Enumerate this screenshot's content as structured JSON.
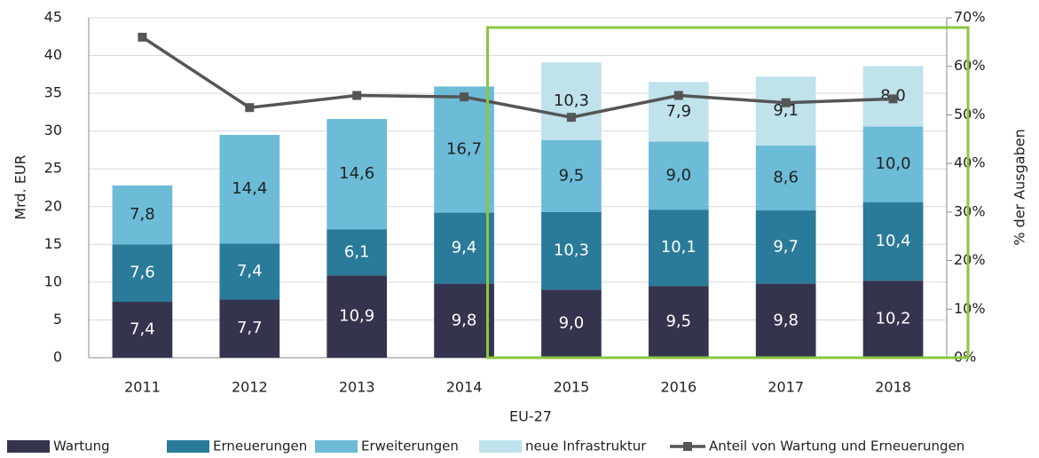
{
  "chart_data": {
    "type": "bar",
    "stacked": true,
    "categories": [
      "2011",
      "2012",
      "2013",
      "2014",
      "2015",
      "2016",
      "2017",
      "2018"
    ],
    "series": [
      {
        "name": "Wartung",
        "color": "#35344f",
        "label_color": "#ffffff",
        "values": [
          7.4,
          7.7,
          10.9,
          9.8,
          9.0,
          9.5,
          9.8,
          10.2
        ],
        "value_labels": [
          "7,4",
          "7,7",
          "10,9",
          "9,8",
          "9,0",
          "9,5",
          "9,8",
          "10,2"
        ]
      },
      {
        "name": "Erneuerungen",
        "color": "#2a7a9a",
        "label_color": "#ffffff",
        "values": [
          7.6,
          7.4,
          6.1,
          9.4,
          10.3,
          10.1,
          9.7,
          10.4
        ],
        "value_labels": [
          "7,6",
          "7,4",
          "6,1",
          "9,4",
          "10,3",
          "10,1",
          "9,7",
          "10,4"
        ]
      },
      {
        "name": "Erweiterungen",
        "color": "#6cbcd8",
        "label_color": "#222222",
        "values": [
          7.8,
          14.4,
          14.6,
          16.7,
          9.5,
          9.0,
          8.6,
          10.0
        ],
        "value_labels": [
          "7,8",
          "14,4",
          "14,6",
          "16,7",
          "9,5",
          "9,0",
          "8,6",
          "10,0"
        ]
      },
      {
        "name": "neue Infrastruktur",
        "color": "#bfe2eb",
        "label_color": "#222222",
        "values": [
          null,
          null,
          null,
          null,
          10.3,
          7.9,
          9.1,
          8.0
        ],
        "value_labels": [
          null,
          null,
          null,
          null,
          "10,3",
          "7,9",
          "9,1",
          "8,0"
        ]
      },
      {
        "name": "Anteil von Wartung und Erneuerungen",
        "color": "#555555",
        "type": "line",
        "axis": "y2",
        "values": [
          66,
          51.5,
          54,
          53.7,
          49.5,
          54,
          52.5,
          53.3
        ]
      }
    ],
    "xlabel": "EU-27",
    "ylabel": "Mrd. EUR",
    "y2label": "% der Ausgaben",
    "ylim": [
      0,
      45
    ],
    "yticks": [
      0,
      5,
      10,
      15,
      20,
      25,
      30,
      35,
      40,
      45
    ],
    "y2lim": [
      0,
      70
    ],
    "y2ticks": [
      {
        "value": 0,
        "label": "0%"
      },
      {
        "value": 10,
        "label": "10%"
      },
      {
        "value": 20,
        "label": "20%"
      },
      {
        "value": 30,
        "label": "30%"
      },
      {
        "value": 40,
        "label": "40%"
      },
      {
        "value": 50,
        "label": "50%"
      },
      {
        "value": 60,
        "label": "60%"
      },
      {
        "value": 70,
        "label": "70%"
      }
    ],
    "grid": true,
    "legend": "bottom"
  }
}
